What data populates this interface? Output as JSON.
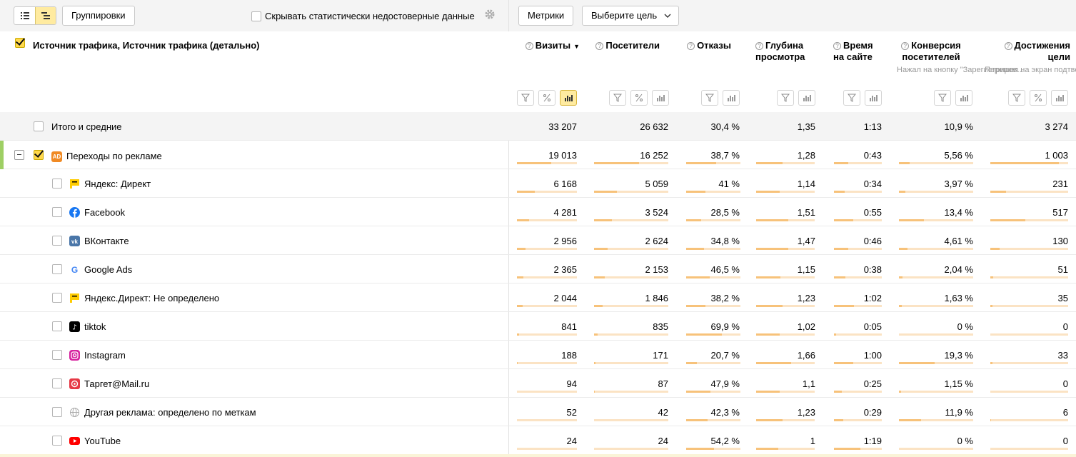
{
  "toolbar": {
    "groupings_label": "Группировки",
    "hide_unreliable_label": "Скрывать статистически недостоверные данные",
    "metrics_label": "Метрики",
    "goal_select_label": "Выберите цель"
  },
  "header": {
    "dimension_title": "Источник трафика, Источник трафика (детально)",
    "metrics": [
      {
        "label": "Визиты",
        "sub": ""
      },
      {
        "label": "Посетители",
        "sub": ""
      },
      {
        "label": "Отказы",
        "sub": ""
      },
      {
        "label": "Глубина просмотра",
        "sub": ""
      },
      {
        "label": "Время на сайте",
        "sub": ""
      },
      {
        "label": "Конверсия посетителей",
        "sub": "Нажал на кнопку \"Зарегистриров..."
      },
      {
        "label": "Достижения цели",
        "sub": "Перешел на экран подтверждения..."
      }
    ]
  },
  "totals": {
    "label": "Итого и средние",
    "values": [
      "33 207",
      "26 632",
      "30,4 %",
      "1,35",
      "1:13",
      "10,9 %",
      "3 274"
    ]
  },
  "rows": [
    {
      "label": "Переходы по рекламе",
      "icon": "ad-icon",
      "values": [
        "19 013",
        "16 252",
        "38,7 %",
        "1,28",
        "0:43",
        "5,56 %",
        "1 003"
      ],
      "fills": [
        0.57,
        0.61,
        0.55,
        0.45,
        0.3,
        0.14,
        0.88
      ]
    },
    {
      "label": "Яндекс: Директ",
      "icon": "yandex-direct-icon",
      "values": [
        "6 168",
        "5 059",
        "41 %",
        "1,14",
        "0:34",
        "3,97 %",
        "231"
      ],
      "fills": [
        0.3,
        0.31,
        0.35,
        0.4,
        0.22,
        0.09,
        0.2
      ]
    },
    {
      "label": "Facebook",
      "icon": "facebook-icon",
      "values": [
        "4 281",
        "3 524",
        "28,5 %",
        "1,51",
        "0:55",
        "13,4 %",
        "517"
      ],
      "fills": [
        0.2,
        0.24,
        0.27,
        0.55,
        0.4,
        0.34,
        0.45
      ]
    },
    {
      "label": "ВКонтакте",
      "icon": "vkontakte-icon",
      "values": [
        "2 956",
        "2 624",
        "34,8 %",
        "1,47",
        "0:46",
        "4,61 %",
        "130"
      ],
      "fills": [
        0.14,
        0.18,
        0.33,
        0.55,
        0.3,
        0.12,
        0.12
      ]
    },
    {
      "label": "Google Ads",
      "icon": "google-icon",
      "values": [
        "2 365",
        "2 153",
        "46,5 %",
        "1,15",
        "0:38",
        "2,04 %",
        "51"
      ],
      "fills": [
        0.11,
        0.14,
        0.44,
        0.42,
        0.24,
        0.05,
        0.04
      ]
    },
    {
      "label": "Яндекс.Директ: Не определено",
      "icon": "yandex-direct-icon",
      "values": [
        "2 044",
        "1 846",
        "38,2 %",
        "1,23",
        "1:02",
        "1,63 %",
        "35"
      ],
      "fills": [
        0.1,
        0.12,
        0.36,
        0.45,
        0.42,
        0.04,
        0.03
      ]
    },
    {
      "label": "tiktok",
      "icon": "tiktok-icon",
      "values": [
        "841",
        "835",
        "69,9 %",
        "1,02",
        "0:05",
        "0 %",
        "0"
      ],
      "fills": [
        0.03,
        0.05,
        0.66,
        0.4,
        0.04,
        0.0,
        0.0
      ]
    },
    {
      "label": "Instagram",
      "icon": "instagram-icon",
      "values": [
        "188",
        "171",
        "20,7 %",
        "1,66",
        "1:00",
        "19,3 %",
        "33"
      ],
      "fills": [
        0.01,
        0.02,
        0.2,
        0.6,
        0.4,
        0.48,
        0.03
      ]
    },
    {
      "label": "Таргет@Mail.ru",
      "icon": "mail-target-icon",
      "values": [
        "94",
        "87",
        "47,9 %",
        "1,1",
        "0:25",
        "1,15 %",
        "0"
      ],
      "fills": [
        0.0,
        0.01,
        0.45,
        0.4,
        0.17,
        0.03,
        0.0
      ]
    },
    {
      "label": "Другая реклама: определено по меткам",
      "icon": "globe-icon",
      "values": [
        "52",
        "42",
        "42,3 %",
        "1,23",
        "0:29",
        "11,9 %",
        "6"
      ],
      "fills": [
        0.0,
        0.0,
        0.4,
        0.45,
        0.2,
        0.3,
        0.01
      ]
    },
    {
      "label": "YouTube",
      "icon": "youtube-icon",
      "values": [
        "24",
        "24",
        "54,2 %",
        "1",
        "1:19",
        "0 %",
        "0"
      ],
      "fills": [
        0.0,
        0.0,
        0.51,
        0.38,
        0.55,
        0.0,
        0.0
      ]
    }
  ],
  "colors": {
    "accent_green": "#9ecf64",
    "bar_fill": "#f7c27a",
    "bar_track": "#fbe3c4",
    "active_button": "#ffeba0"
  }
}
